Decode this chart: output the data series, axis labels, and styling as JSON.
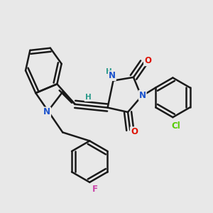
{
  "background_color": "#e8e8e8",
  "bond_color": "#1a1a1a",
  "bond_width": 1.8,
  "atom_colors": {
    "N": "#1a52cc",
    "O": "#dd1100",
    "Cl": "#55cc00",
    "F": "#cc44aa",
    "H_teal": "#2a9a8a",
    "C": "#1a1a1a"
  }
}
